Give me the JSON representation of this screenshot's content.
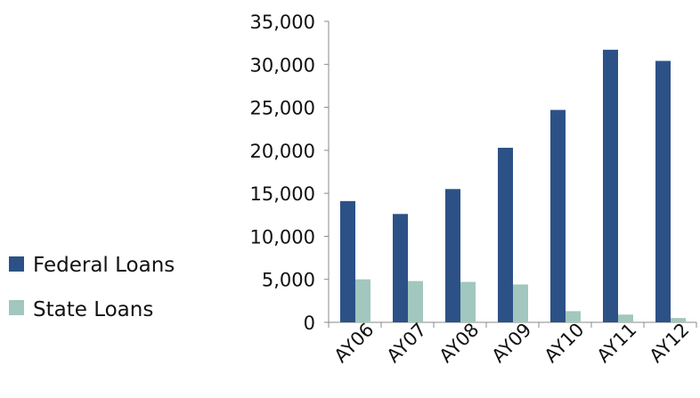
{
  "chart_data": {
    "type": "bar",
    "categories": [
      "AY06",
      "AY07",
      "AY08",
      "AY09",
      "AY10",
      "AY11",
      "AY12"
    ],
    "series": [
      {
        "name": "Federal Loans",
        "values": [
          14100,
          12600,
          15500,
          20300,
          24700,
          31700,
          30400
        ],
        "color": "#2c5186"
      },
      {
        "name": "State Loans",
        "values": [
          5000,
          4800,
          4700,
          4400,
          1300,
          900,
          500
        ],
        "color": "#a1c7be"
      }
    ],
    "ylim": [
      0,
      35000
    ],
    "yticks": [
      "0",
      "5,000",
      "10,000",
      "15,000",
      "20,000",
      "25,000",
      "30,000",
      "35,000"
    ],
    "ytick_values": [
      0,
      5000,
      10000,
      15000,
      20000,
      25000,
      30000,
      35000
    ],
    "grid": false,
    "legend_position": "left",
    "title": "",
    "xlabel": "",
    "ylabel": ""
  }
}
